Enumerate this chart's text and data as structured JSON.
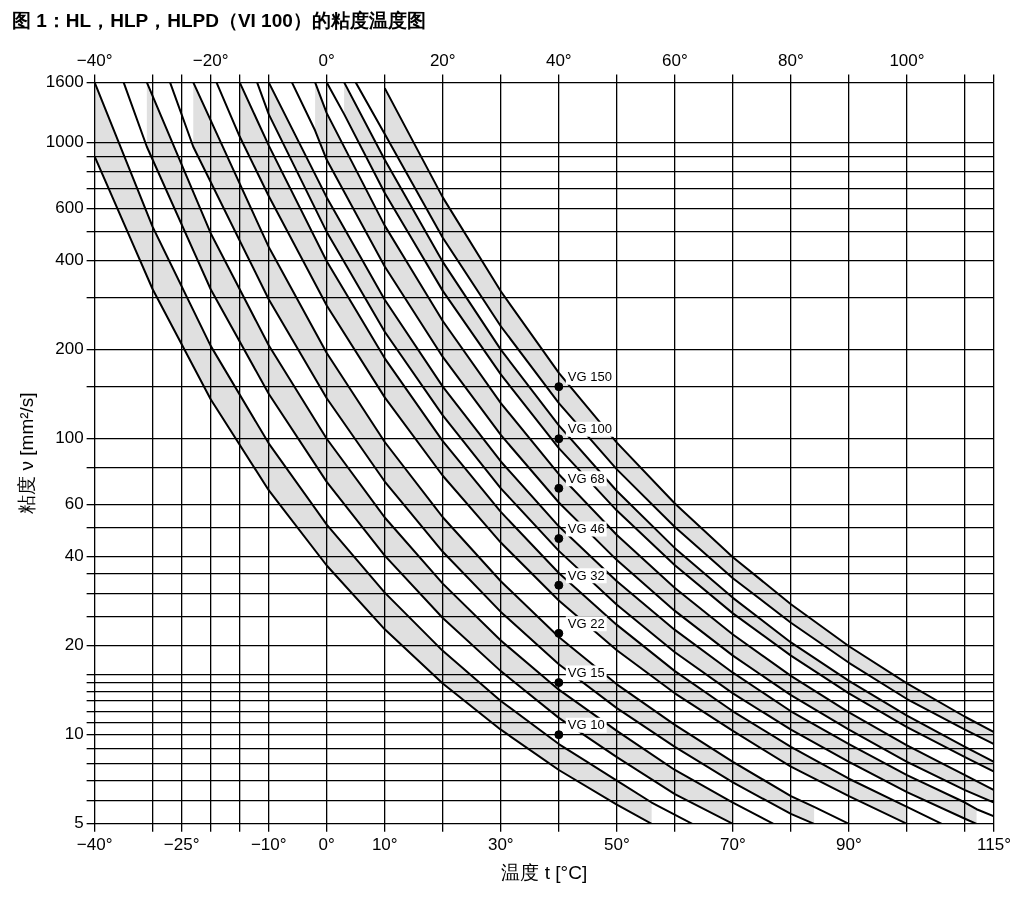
{
  "chart_data": {
    "type": "line",
    "title": "图 1：HL，HLP，HLPD（VI 100）的粘度温度图",
    "xlabel": "温度 t [°C]",
    "ylabel": "粘度 ν [mm²/s]",
    "grid": true,
    "log": true,
    "xlim": [
      -40,
      115
    ],
    "xticks": [
      {
        "value": -40,
        "label": "−40°"
      },
      {
        "value": -30,
        "label": null
      },
      {
        "value": -25,
        "label": "−25°"
      },
      {
        "value": -20,
        "label": null
      },
      {
        "value": -15,
        "label": null
      },
      {
        "value": -10,
        "label": "−10°"
      },
      {
        "value": 0,
        "label": "0°"
      },
      {
        "value": 10,
        "label": "10°"
      },
      {
        "value": 20,
        "label": null
      },
      {
        "value": 30,
        "label": "30°"
      },
      {
        "value": 40,
        "label": null
      },
      {
        "value": 50,
        "label": "50°"
      },
      {
        "value": 60,
        "label": null
      },
      {
        "value": 70,
        "label": "70°"
      },
      {
        "value": 80,
        "label": null
      },
      {
        "value": 90,
        "label": "90°"
      },
      {
        "value": 100,
        "label": null
      },
      {
        "value": 110,
        "label": null
      },
      {
        "value": 115,
        "label": "115°"
      }
    ],
    "x2lim": [
      -40,
      115
    ],
    "x2ticks": [
      {
        "value": -40,
        "label": "−40°"
      },
      {
        "value": -30,
        "label": null
      },
      {
        "value": -25,
        "label": null
      },
      {
        "value": -20,
        "label": "−20°"
      },
      {
        "value": -15,
        "label": null
      },
      {
        "value": -10,
        "label": null
      },
      {
        "value": 0,
        "label": "0°"
      },
      {
        "value": 10,
        "label": null
      },
      {
        "value": 20,
        "label": "20°"
      },
      {
        "value": 30,
        "label": null
      },
      {
        "value": 40,
        "label": "40°"
      },
      {
        "value": 50,
        "label": null
      },
      {
        "value": 60,
        "label": "60°"
      },
      {
        "value": 70,
        "label": null
      },
      {
        "value": 80,
        "label": "80°"
      },
      {
        "value": 90,
        "label": null
      },
      {
        "value": 100,
        "label": "100°"
      },
      {
        "value": 110,
        "label": null
      },
      {
        "value": 115,
        "label": null
      }
    ],
    "ylim": [
      5,
      1600
    ],
    "yticks": [
      5,
      {
        "value": 6,
        "label": null
      },
      {
        "value": 7,
        "label": null
      },
      {
        "value": 8,
        "label": null
      },
      {
        "value": 9,
        "label": null
      },
      10,
      {
        "value": 11,
        "label": null
      },
      {
        "value": 12,
        "label": null
      },
      {
        "value": 13,
        "label": null
      },
      {
        "value": 14,
        "label": null
      },
      {
        "value": 15,
        "label": null
      },
      {
        "value": 16,
        "label": null
      },
      20,
      {
        "value": 25,
        "label": null
      },
      {
        "value": 30,
        "label": null
      },
      {
        "value": 35,
        "label": null
      },
      40,
      {
        "value": 50,
        "label": null
      },
      60,
      {
        "value": 80,
        "label": null
      },
      100,
      {
        "value": 150,
        "label": null
      },
      200,
      {
        "value": 300,
        "label": null
      },
      400,
      {
        "value": 500,
        "label": null
      },
      600,
      {
        "value": 700,
        "label": null
      },
      {
        "value": 800,
        "label": null
      },
      {
        "value": 900,
        "label": null
      },
      1000,
      1600
    ],
    "series": [
      {
        "name": "VG 10",
        "type": "line",
        "color": "#000000",
        "marker": "circle",
        "x": [
          -40,
          -30,
          -20,
          -10,
          0,
          10,
          20,
          30,
          40,
          50,
          56
        ],
        "values": [
          null,
          null,
          null,
          null,
          null,
          null,
          null,
          null,
          10,
          null,
          null
        ],
        "lower": [
          900,
          320,
          136,
          67,
          37.3,
          22.7,
          14.9,
          10.4,
          7.6,
          5.8,
          5
        ],
        "upper": [
          1600,
          520,
          206,
          96.5,
          51.3,
          30.2,
          19.2,
          13.0,
          9.3,
          7.0,
          5.9
        ]
      },
      {
        "name": "VG 15",
        "type": "line",
        "color": "#000000",
        "marker": "circle",
        "x": [
          -31,
          -20,
          -10,
          0,
          10,
          20,
          30,
          40,
          50,
          60,
          70
        ],
        "values": [
          null,
          null,
          null,
          null,
          null,
          null,
          null,
          15,
          null,
          null,
          null
        ],
        "lower": [
          970,
          320,
          142,
          71.5,
          40.3,
          24.8,
          16.4,
          11.4,
          8.4,
          6.3,
          5
        ],
        "upper": [
          1600,
          495,
          207,
          100,
          54.2,
          32.4,
          20.8,
          14.2,
          10.3,
          7.6,
          5.9
        ]
      },
      {
        "name": "VG 22",
        "type": "line",
        "color": "#000000",
        "marker": "circle",
        "x": [
          -23,
          -10,
          0,
          10,
          20,
          30,
          40,
          50,
          60,
          70,
          80,
          84
        ],
        "values": [
          null,
          null,
          null,
          null,
          null,
          null,
          22,
          null,
          null,
          null,
          null,
          null
        ],
        "lower": [
          970,
          296,
          137,
          71.7,
          41.5,
          26.0,
          17.3,
          12.3,
          9.1,
          6.9,
          5.4,
          5
        ],
        "upper": [
          1600,
          445,
          195,
          97.5,
          54.3,
          33.0,
          21.4,
          14.8,
          10.8,
          8.1,
          6.2,
          5.7
        ]
      },
      {
        "name": "VG 32",
        "type": "line",
        "color": "#000000",
        "marker": "circle",
        "x": [
          -15,
          -10,
          0,
          10,
          20,
          30,
          40,
          50,
          60,
          70,
          80,
          90,
          100
        ],
        "values": [
          null,
          null,
          null,
          null,
          null,
          null,
          32,
          null,
          null,
          null,
          null,
          null,
          null
        ],
        "lower": [
          1050,
          661,
          282,
          138,
          75.0,
          44.6,
          28.4,
          19.3,
          13.8,
          10.3,
          7.8,
          6.2,
          5
        ],
        "upper": [
          1600,
          980,
          398,
          187,
          98.2,
          56.6,
          35.2,
          23.5,
          16.4,
          12.0,
          9.1,
          7.1,
          5.7
        ]
      },
      {
        "name": "VG 46",
        "type": "line",
        "color": "#000000",
        "marker": "circle",
        "x": [
          -10,
          0,
          10,
          20,
          30,
          40,
          50,
          60,
          70,
          80,
          90,
          100,
          110,
          112
        ],
        "values": [
          null,
          null,
          null,
          null,
          null,
          46,
          null,
          null,
          null,
          null,
          null,
          null,
          null,
          null
        ],
        "lower": [
          1250,
          500,
          230,
          120,
          68,
          41.8,
          27.5,
          19.0,
          13.8,
          10.4,
          8.1,
          6.4,
          5.2,
          5
        ],
        "upper": [
          1600,
          654,
          295,
          150,
          83.8,
          50.6,
          33.0,
          22.6,
          16.2,
          12.0,
          9.3,
          7.3,
          5.9,
          5.6
        ]
      },
      {
        "name": "VG 68",
        "type": "line",
        "color": "#000000",
        "marker": "circle",
        "x": [
          -2,
          0,
          10,
          20,
          30,
          40,
          50,
          60,
          70,
          80,
          90,
          100,
          110,
          115
        ],
        "values": [
          null,
          null,
          null,
          null,
          null,
          68,
          null,
          null,
          null,
          null,
          null,
          null,
          null,
          null
        ],
        "lower": [
          1100,
          876,
          382,
          189,
          103,
          60.9,
          38.9,
          26.2,
          18.5,
          13.6,
          10.4,
          8.1,
          6.5,
          5.9
        ],
        "upper": [
          1600,
          1260,
          525,
          250,
          132,
          75.9,
          47.3,
          31.3,
          21.8,
          15.8,
          11.9,
          9.2,
          7.3,
          6.5
        ]
      },
      {
        "name": "VG 100",
        "type": "line",
        "color": "#000000",
        "marker": "circle",
        "x": [
          3,
          10,
          20,
          30,
          40,
          50,
          60,
          70,
          80,
          90,
          100,
          110,
          115
        ],
        "values": [
          null,
          null,
          null,
          null,
          100,
          null,
          null,
          null,
          null,
          null,
          null,
          null,
          null
        ],
        "lower": [
          1250,
          677,
          316,
          165,
          93.0,
          57.2,
          37.4,
          25.7,
          18.5,
          13.8,
          10.6,
          8.4,
          7.5
        ],
        "upper": [
          1600,
          876,
          396,
          200,
          111,
          66.6,
          42.7,
          29.0,
          20.5,
          15.2,
          11.6,
          9.1,
          8.1
        ]
      },
      {
        "name": "VG 150",
        "type": "line",
        "color": "#000000",
        "marker": "circle",
        "x": [
          10,
          20,
          30,
          40,
          50,
          60,
          70,
          80,
          90,
          100,
          110,
          115
        ],
        "values": [
          null,
          null,
          null,
          150,
          null,
          null,
          null,
          null,
          null,
          null,
          null,
          null
        ],
        "lower": [
          1070,
          478,
          240,
          132,
          78.8,
          50.3,
          33.8,
          23.9,
          17.5,
          13.2,
          10.4,
          9.3
        ],
        "upper": [
          1530,
          654,
          315,
          167,
          97.0,
          60.4,
          39.8,
          27.6,
          19.9,
          14.9,
          11.5,
          10.2
        ]
      },
      {
        "type": "line",
        "color": "#000000",
        "x": [
          -40,
          -30,
          -20,
          -10,
          0,
          10,
          20,
          30,
          40,
          50,
          56
        ],
        "values": [
          900,
          320,
          136,
          67,
          37.3,
          22.7,
          14.9,
          10.4,
          7.6,
          5.8,
          5
        ]
      },
      {
        "type": "line",
        "color": "#000000",
        "x": [
          -40,
          -30,
          -20,
          -10,
          0,
          10,
          20,
          30,
          40,
          50,
          56,
          63
        ],
        "values": [
          1600,
          520,
          206,
          96.5,
          51.3,
          30.2,
          19.2,
          13.0,
          9.3,
          7.0,
          5.9,
          5
        ]
      },
      {
        "type": "line",
        "color": "#000000",
        "x": [
          -35,
          -31,
          -20,
          -10,
          0,
          10,
          20,
          30,
          40,
          50,
          60,
          70
        ],
        "values": [
          1600,
          970,
          320,
          142,
          71.5,
          40.3,
          24.8,
          16.4,
          11.4,
          8.4,
          6.3,
          5
        ]
      },
      {
        "type": "line",
        "color": "#000000",
        "x": [
          -31,
          -20,
          -10,
          0,
          10,
          20,
          30,
          40,
          50,
          60,
          70,
          77
        ],
        "values": [
          1600,
          495,
          207,
          100,
          54.2,
          32.4,
          20.8,
          14.2,
          10.3,
          7.6,
          5.9,
          5
        ]
      },
      {
        "type": "line",
        "color": "#000000",
        "x": [
          -27,
          -23,
          -10,
          0,
          10,
          20,
          30,
          40,
          50,
          60,
          70,
          80,
          84
        ],
        "values": [
          1600,
          970,
          296,
          137,
          71.7,
          41.5,
          26.0,
          17.3,
          12.3,
          9.1,
          6.9,
          5.4,
          5
        ]
      },
      {
        "type": "line",
        "color": "#000000",
        "x": [
          -23,
          -10,
          0,
          10,
          20,
          30,
          40,
          50,
          60,
          70,
          80,
          84,
          90
        ],
        "values": [
          1600,
          445,
          195,
          97.5,
          54.3,
          33.0,
          21.4,
          14.8,
          10.8,
          8.1,
          6.2,
          5.7,
          5
        ]
      },
      {
        "type": "line",
        "color": "#000000",
        "x": [
          -19,
          -15,
          -10,
          0,
          10,
          20,
          30,
          40,
          50,
          60,
          70,
          80,
          90,
          100
        ],
        "values": [
          1600,
          1050,
          661,
          282,
          138,
          75.0,
          44.6,
          28.4,
          19.3,
          13.8,
          10.3,
          7.8,
          6.2,
          5
        ]
      },
      {
        "type": "line",
        "color": "#000000",
        "x": [
          -15,
          -10,
          0,
          10,
          20,
          30,
          40,
          50,
          60,
          70,
          80,
          90,
          100,
          106
        ],
        "values": [
          1600,
          980,
          398,
          187,
          98.2,
          56.6,
          35.2,
          23.5,
          16.4,
          12.0,
          9.1,
          7.1,
          5.7,
          5
        ]
      },
      {
        "type": "line",
        "color": "#000000",
        "x": [
          -12,
          -10,
          0,
          10,
          20,
          30,
          40,
          50,
          60,
          70,
          80,
          90,
          100,
          110,
          112
        ],
        "values": [
          1600,
          1250,
          500,
          230,
          120,
          68,
          41.8,
          27.5,
          19.0,
          13.8,
          10.4,
          8.1,
          6.4,
          5.2,
          5
        ]
      },
      {
        "type": "line",
        "color": "#000000",
        "x": [
          -10,
          0,
          10,
          20,
          30,
          40,
          50,
          60,
          70,
          80,
          90,
          100,
          110,
          112,
          115
        ],
        "values": [
          1600,
          654,
          295,
          150,
          83.8,
          50.6,
          33.0,
          22.6,
          16.2,
          12.0,
          9.3,
          7.3,
          5.9,
          5.6,
          5.3
        ]
      },
      {
        "type": "line",
        "color": "#000000",
        "x": [
          -6,
          -2,
          0,
          10,
          20,
          30,
          40,
          50,
          60,
          70,
          80,
          90,
          100,
          110,
          115
        ],
        "values": [
          1600,
          1100,
          876,
          382,
          189,
          103,
          60.9,
          38.9,
          26.2,
          18.5,
          13.6,
          10.4,
          8.1,
          6.5,
          5.9
        ]
      },
      {
        "type": "line",
        "color": "#000000",
        "x": [
          -2,
          0,
          10,
          20,
          30,
          40,
          50,
          60,
          70,
          80,
          90,
          100,
          110,
          115
        ],
        "values": [
          1600,
          1260,
          525,
          250,
          132,
          75.9,
          47.3,
          31.3,
          21.8,
          15.8,
          11.9,
          9.2,
          7.3,
          6.5
        ]
      },
      {
        "type": "line",
        "color": "#000000",
        "x": [
          0,
          3,
          10,
          20,
          30,
          40,
          50,
          60,
          70,
          80,
          90,
          100,
          110,
          115
        ],
        "values": [
          1600,
          1250,
          677,
          316,
          165,
          93.0,
          57.2,
          37.4,
          25.7,
          18.5,
          13.8,
          10.6,
          8.4,
          7.5
        ]
      },
      {
        "type": "line",
        "color": "#000000",
        "x": [
          3,
          10,
          20,
          30,
          40,
          50,
          60,
          70,
          80,
          90,
          100,
          110,
          115
        ],
        "values": [
          1600,
          876,
          396,
          200,
          111,
          66.6,
          42.7,
          29.0,
          20.5,
          15.2,
          11.6,
          9.1,
          8.1
        ]
      },
      {
        "type": "line",
        "color": "#000000",
        "x": [
          5,
          10,
          20,
          30,
          40,
          50,
          60,
          70,
          80,
          90,
          100,
          110,
          115
        ],
        "values": [
          1600,
          1070,
          478,
          240,
          132,
          78.8,
          50.3,
          33.8,
          23.9,
          17.5,
          13.2,
          10.4,
          9.3
        ]
      },
      {
        "type": "line",
        "color": "#000000",
        "x": [
          10,
          20,
          30,
          40,
          50,
          60,
          70,
          80,
          90,
          100,
          110,
          115
        ],
        "values": [
          1530,
          654,
          315,
          167,
          97.0,
          60.4,
          39.8,
          27.6,
          19.9,
          14.9,
          11.5,
          10.2
        ]
      }
    ]
  }
}
